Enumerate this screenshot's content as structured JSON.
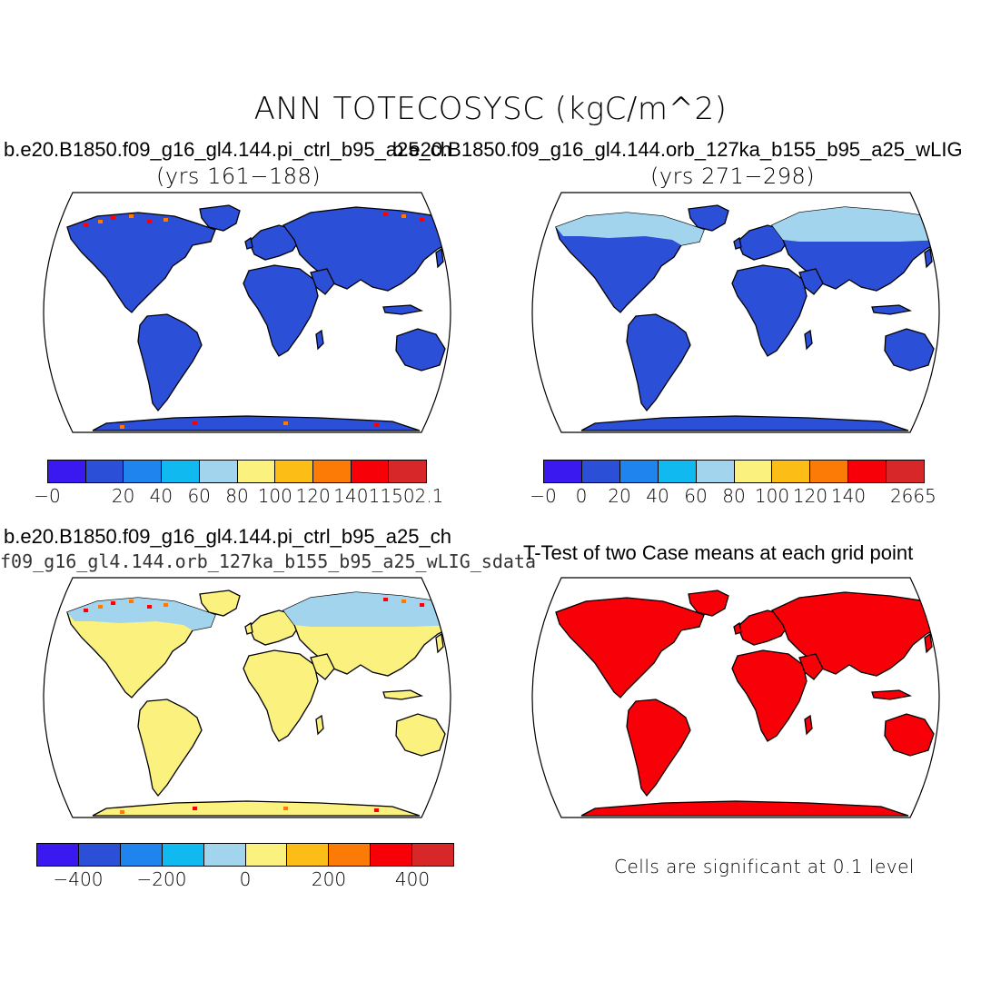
{
  "figure": {
    "title": "ANN TOTECOSYSC (kgC/m^2)",
    "colors": [
      "#3a18f0",
      "#2c4fd8",
      "#1f84ee",
      "#10baf0",
      "#a2d4ee",
      "#fbf17e",
      "#fcbe16",
      "#fc7b06",
      "#f80008",
      "#d82728"
    ]
  },
  "panels": [
    {
      "id": "case1",
      "title": "b.e20.B1850.f09_g16_gl4.144.pi_ctrl_b95_a25_ch",
      "subtitle": "(yrs 161−188)",
      "land_color": "#2c4fd8",
      "colorbar_labels": [
        "−0",
        "20",
        "40",
        "60",
        "80",
        "100",
        "120",
        "140",
        "11502.1"
      ]
    },
    {
      "id": "case2",
      "title": "b.e20.B1850.f09_g16_gl4.144.orb_127ka_b155_b95_a25_wLIG",
      "subtitle": "(yrs 271−298)",
      "land_color": "#2c4fd8",
      "colorbar_labels": [
        "−0",
        "0",
        "20",
        "40",
        "60",
        "80",
        "100",
        "120",
        "140",
        "2665"
      ]
    },
    {
      "id": "diff",
      "title": "b.e20.B1850.f09_g16_gl4.144.pi_ctrl_b95_a25_ch",
      "subtitle": "f09_g16_gl4.144.orb_127ka_b155_b95_a25_wLIG_sdata",
      "land_color": "#fbf17e",
      "colorbar_labels": [
        "−400",
        "−200",
        "0",
        "200",
        "400"
      ]
    },
    {
      "id": "ttest",
      "title": "T-Test of two Case means at each grid point",
      "land_color": "#f80008",
      "note": "Cells are significant at 0.1 level"
    }
  ]
}
